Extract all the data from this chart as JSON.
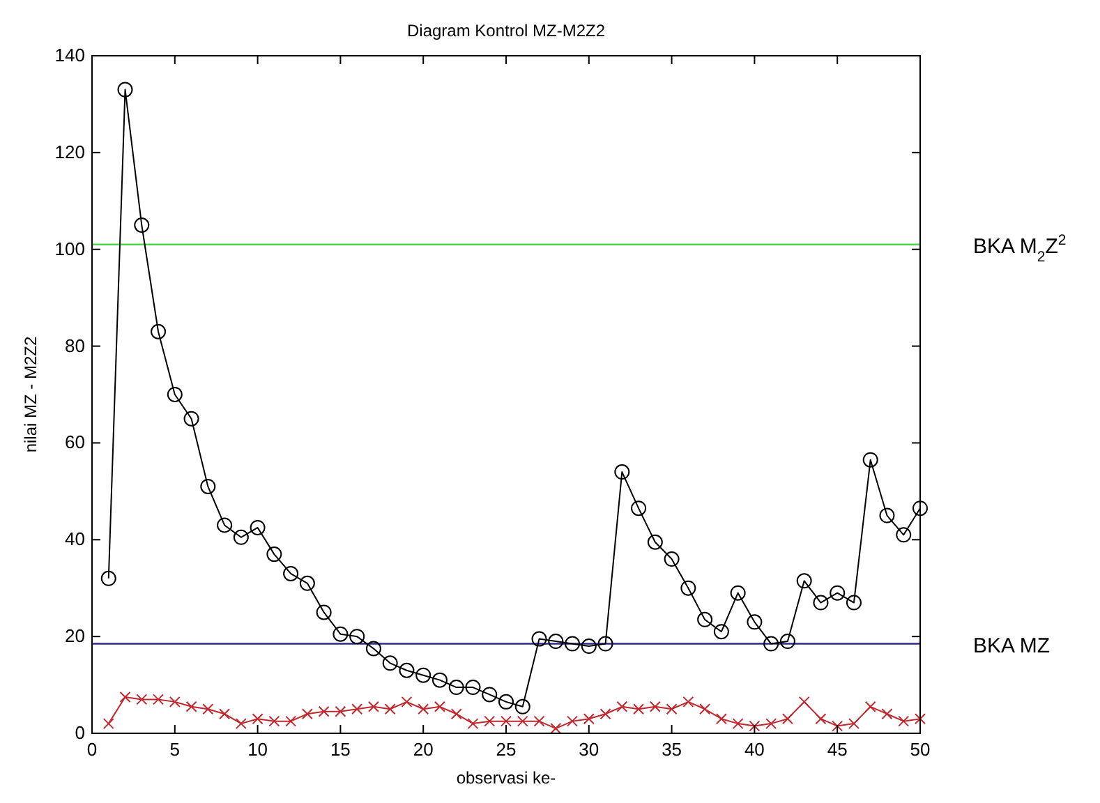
{
  "chart_data": {
    "type": "line",
    "title": "Diagram Kontrol MZ-M2Z2",
    "xlabel": "observasi ke-",
    "ylabel": "nilai MZ - M2Z2",
    "x": [
      1,
      2,
      3,
      4,
      5,
      6,
      7,
      8,
      9,
      10,
      11,
      12,
      13,
      14,
      15,
      16,
      17,
      18,
      19,
      20,
      21,
      22,
      23,
      24,
      25,
      26,
      27,
      28,
      29,
      30,
      31,
      32,
      33,
      34,
      35,
      36,
      37,
      38,
      39,
      40,
      41,
      42,
      43,
      44,
      45,
      46,
      47,
      48,
      49,
      50
    ],
    "series": [
      {
        "color": "#000000",
        "marker": "circle",
        "values": [
          32,
          133,
          105,
          83,
          70,
          65,
          51,
          43,
          40.5,
          42.5,
          37,
          33,
          31,
          25,
          20.5,
          20,
          17.5,
          14.5,
          13,
          12,
          11,
          9.5,
          9.5,
          8,
          6.5,
          5.5,
          19.5,
          19,
          18.5,
          18,
          18.5,
          54,
          46.5,
          39.5,
          36,
          30,
          23.5,
          21,
          29,
          23,
          18.5,
          19,
          31.5,
          27,
          29,
          27,
          56.5,
          45,
          41,
          46.5
        ]
      },
      {
        "color": "#c0282d",
        "marker": "cross",
        "values": [
          2,
          7.5,
          7,
          7,
          6.5,
          5.5,
          5,
          4,
          2,
          3,
          2.5,
          2.5,
          4,
          4.5,
          4.5,
          5,
          5.5,
          5,
          6.5,
          5,
          5.5,
          4,
          2,
          2.5,
          2.5,
          2.5,
          2.5,
          1,
          2.5,
          3,
          4,
          5.5,
          5,
          5.5,
          5,
          6.5,
          5,
          3,
          2,
          1.5,
          2,
          3,
          6.5,
          3,
          1.5,
          2,
          5.5,
          4,
          2.5,
          3
        ]
      }
    ],
    "xlim": [
      0,
      50
    ],
    "xticks": [
      0,
      5,
      10,
      15,
      20,
      25,
      30,
      35,
      40,
      45,
      50
    ],
    "ylim": [
      0,
      140
    ],
    "yticks": [
      0,
      20,
      40,
      60,
      80,
      100,
      120,
      140
    ],
    "ref_lines": [
      {
        "axis": "y",
        "value": 101,
        "label": "BKA M$_{2}$Z$^{2}$",
        "color": "#4cd44c"
      },
      {
        "axis": "y",
        "value": 18.5,
        "label": "BKA MZ",
        "color": "#2a2a90"
      }
    ],
    "grid": false
  }
}
